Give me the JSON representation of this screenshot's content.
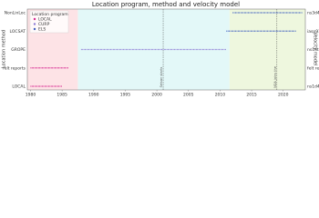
{
  "chart_data": {
    "type": "timeline",
    "title": "Location program, method and velocity model",
    "y_label": "Location method",
    "y2_label": "Velocity model",
    "categories": [
      "NonLinLoc",
      "LOCSAT",
      "GROPE",
      "felt reports",
      "LOCAL"
    ],
    "right_categories": [
      "ns3d4",
      "iasp91",
      "ns1dt",
      "felt reports",
      "ns1d4"
    ],
    "xlim": [
      1979.5,
      2023.5
    ],
    "xticks": [
      1980,
      1985,
      1990,
      1995,
      2000,
      2005,
      2010,
      2015,
      2020
    ],
    "legend_title": "Location program",
    "legend_loc": "upper left",
    "series": [
      {
        "name": "LOCAL",
        "color": "#d62790",
        "spans": [
          {
            "y": "LOCAL",
            "x": [
              1980,
              1985
            ]
          },
          {
            "y": "felt reports",
            "x": [
              1980,
              1986
            ]
          }
        ]
      },
      {
        "name": "CURP",
        "color": "#8c7bd6",
        "spans": [
          {
            "y": "GROPE",
            "x": [
              1988,
              2011
            ]
          }
        ]
      },
      {
        "name": "ELS",
        "color": "#3f5fbf",
        "spans": [
          {
            "y": "LOCSAT",
            "x": [
              2011,
              2022
            ]
          },
          {
            "y": "NonLinLoc",
            "x": [
              2012,
              2023
            ]
          }
        ]
      }
    ],
    "regions": [
      {
        "x": [
          1979.5,
          1987.5
        ],
        "color": "#fde3e6"
      },
      {
        "x": [
          1987.5,
          2011.5
        ],
        "color": "#e3f8f8"
      },
      {
        "x": [
          2011.5,
          2023.5
        ],
        "color": "#eef7de"
      }
    ],
    "annotations": [
      {
        "x": 2001,
        "text": "Seisan starts"
      },
      {
        "x": 2019,
        "text": "NOA joins the"
      }
    ]
  }
}
